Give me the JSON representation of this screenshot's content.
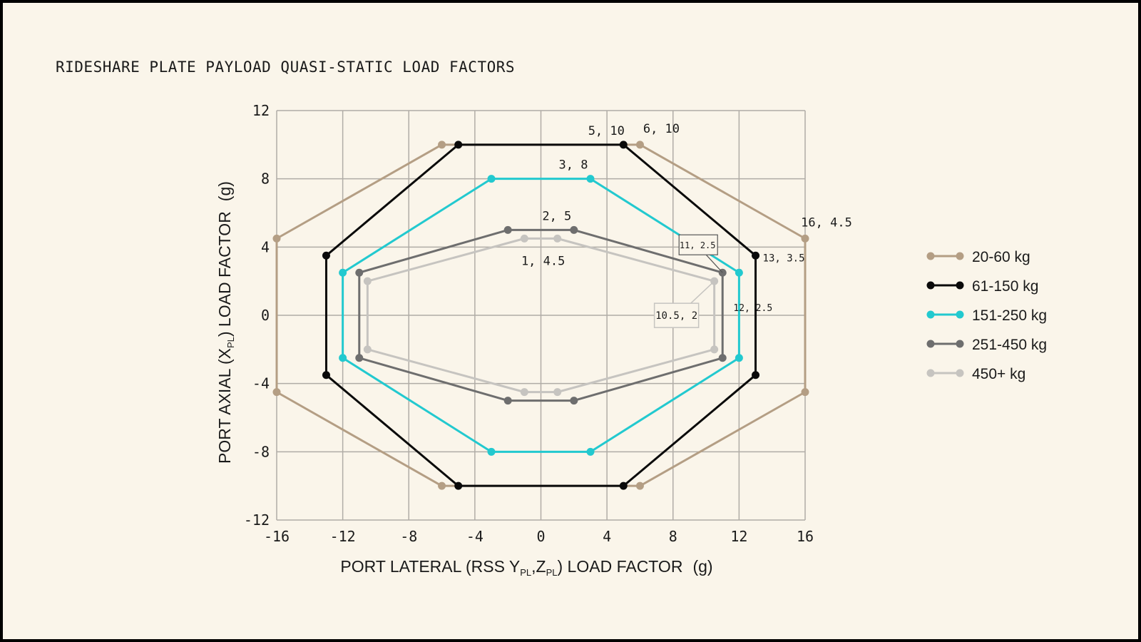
{
  "title": "RIDESHARE PLATE PAYLOAD QUASI-STATIC LOAD FACTORS",
  "colors": {
    "background": "#faf5ea",
    "grid": "#b0aca6",
    "series": [
      "#b49e84",
      "#0a0a0a",
      "#22c9cf",
      "#6e6e6e",
      "#c6c4c0"
    ]
  },
  "chart_data": {
    "type": "line",
    "title": "RIDESHARE PLATE PAYLOAD QUASI-STATIC LOAD FACTORS",
    "xlabel": {
      "pre": "PORT LATERAL (RSS Y",
      "sub1": "PL",
      "mid": ",Z",
      "sub2": "PL",
      "post": ") LOAD FACTOR",
      "unit": "(g)"
    },
    "ylabel": {
      "pre": "PORT AXIAL (X",
      "sub": "PL",
      "post": ") LOAD FACTOR",
      "unit": "(g)"
    },
    "xlim": [
      -16,
      16
    ],
    "ylim": [
      -12,
      12
    ],
    "xticks": [
      "-16",
      "-12",
      "-8",
      "-4",
      "0",
      "4",
      "8",
      "12",
      "16"
    ],
    "yticks": [
      "12",
      "8",
      "4",
      "0",
      "-4",
      "-8",
      "-12"
    ],
    "grid": true,
    "legend_position": "right",
    "series": [
      {
        "name": "20-60 kg",
        "color": "#b49e84",
        "points": [
          [
            -6,
            10
          ],
          [
            6,
            10
          ],
          [
            16,
            4.5
          ],
          [
            16,
            -4.5
          ],
          [
            6,
            -10
          ],
          [
            -6,
            -10
          ],
          [
            -16,
            -4.5
          ],
          [
            -16,
            4.5
          ],
          [
            -6,
            10
          ]
        ]
      },
      {
        "name": "61-150 kg",
        "color": "#0a0a0a",
        "points": [
          [
            -5,
            10
          ],
          [
            5,
            10
          ],
          [
            13,
            3.5
          ],
          [
            13,
            -3.5
          ],
          [
            5,
            -10
          ],
          [
            -5,
            -10
          ],
          [
            -13,
            -3.5
          ],
          [
            -13,
            3.5
          ],
          [
            -5,
            10
          ]
        ]
      },
      {
        "name": "151-250 kg",
        "color": "#22c9cf",
        "points": [
          [
            -3,
            8
          ],
          [
            3,
            8
          ],
          [
            12,
            2.5
          ],
          [
            12,
            -2.5
          ],
          [
            3,
            -8
          ],
          [
            -3,
            -8
          ],
          [
            -12,
            -2.5
          ],
          [
            -12,
            2.5
          ],
          [
            -3,
            8
          ]
        ]
      },
      {
        "name": "251-450 kg",
        "color": "#6e6e6e",
        "points": [
          [
            -2,
            5
          ],
          [
            2,
            5
          ],
          [
            11,
            2.5
          ],
          [
            11,
            -2.5
          ],
          [
            2,
            -5
          ],
          [
            -2,
            -5
          ],
          [
            -11,
            -2.5
          ],
          [
            -11,
            2.5
          ],
          [
            -2,
            5
          ]
        ]
      },
      {
        "name": "450+ kg",
        "color": "#c6c4c0",
        "points": [
          [
            -1,
            4.5
          ],
          [
            1,
            4.5
          ],
          [
            10.5,
            2
          ],
          [
            10.5,
            -2
          ],
          [
            1,
            -4.5
          ],
          [
            -1,
            -4.5
          ],
          [
            -10.5,
            -2
          ],
          [
            -10.5,
            2
          ],
          [
            -1,
            4.5
          ]
        ]
      }
    ],
    "annotations": [
      {
        "text": "5, 10",
        "x": 5,
        "y": 10,
        "pos": "above-left",
        "size": 17
      },
      {
        "text": "6, 10",
        "x": 6,
        "y": 10,
        "pos": "above-right",
        "size": 17
      },
      {
        "text": "3, 8",
        "x": 3,
        "y": 8,
        "pos": "above-left",
        "size": 17
      },
      {
        "text": "16, 4.5",
        "x": 16,
        "y": 4.5,
        "pos": "above-right",
        "size": 17
      },
      {
        "text": "2, 5",
        "x": 2,
        "y": 5,
        "pos": "above-left",
        "size": 17
      },
      {
        "text": "1, 4.5",
        "x": 1,
        "y": 4.5,
        "pos": "below-left",
        "size": 17
      },
      {
        "text": "13, 3.5",
        "x": 13,
        "y": 3.5,
        "pos": "right",
        "size": 14
      },
      {
        "text": "12, 2.5",
        "x": 12,
        "y": 2.5,
        "pos": "below-right",
        "size": 13
      },
      {
        "text": "11, 2.5",
        "x": 11,
        "y": 2.5,
        "pos": "callout-up",
        "size": 12
      },
      {
        "text": "10.5, 2",
        "x": 10.5,
        "y": 2,
        "pos": "callout-down",
        "size": 14
      }
    ]
  }
}
